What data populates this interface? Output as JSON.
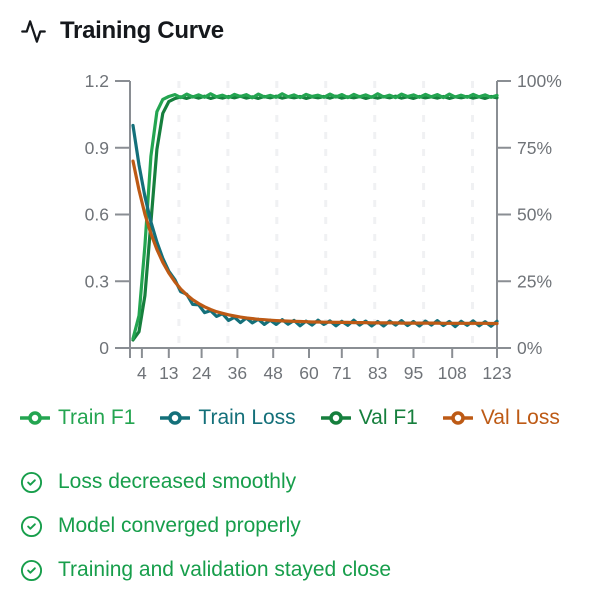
{
  "header": {
    "title": "Training Curve"
  },
  "chart_data": {
    "type": "line",
    "title": "Training Curve",
    "xlabel": "",
    "ylabel_left": "",
    "ylabel_right": "",
    "grid": "vertical-dashed",
    "legend_position": "bottom",
    "left_axis": {
      "min": 0,
      "max": 1.2,
      "tick_values": [
        0,
        0.3,
        0.6,
        0.9,
        1.2
      ],
      "tick_labels": [
        "0",
        "0.3",
        "0.6",
        "0.9",
        "1.2"
      ]
    },
    "right_axis": {
      "min": 0,
      "max": 100,
      "tick_values": [
        0,
        25,
        50,
        75,
        100
      ],
      "tick_labels": [
        "0%",
        "25%",
        "50%",
        "75%",
        "100%"
      ]
    },
    "x_axis": {
      "min": 0,
      "max": 123,
      "tick_values": [
        4,
        13,
        24,
        36,
        48,
        60,
        71,
        83,
        95,
        108,
        123
      ]
    },
    "x": [
      1,
      3,
      5,
      7,
      9,
      11,
      13,
      15,
      17,
      19,
      21,
      23,
      25,
      27,
      29,
      31,
      33,
      35,
      37,
      39,
      41,
      43,
      45,
      47,
      49,
      51,
      53,
      55,
      57,
      59,
      61,
      63,
      65,
      67,
      69,
      71,
      73,
      75,
      77,
      79,
      81,
      83,
      85,
      87,
      89,
      91,
      93,
      95,
      97,
      99,
      101,
      103,
      105,
      107,
      109,
      111,
      113,
      115,
      117,
      119,
      121,
      123
    ],
    "series": [
      {
        "name": "Train F1",
        "axis": "right",
        "color": "#24a551",
        "values": [
          3.5,
          12.1,
          38.3,
          71.8,
          88.5,
          93.1,
          94.2,
          94.9,
          93.8,
          95.1,
          94.0,
          94.8,
          93.9,
          95.2,
          94.1,
          94.7,
          93.8,
          95.0,
          94.2,
          94.9,
          93.7,
          95.1,
          94.0,
          94.6,
          93.9,
          95.2,
          94.1,
          94.8,
          93.8,
          95.0,
          94.2,
          94.7,
          93.9,
          95.1,
          94.0,
          94.9,
          93.8,
          95.0,
          94.1,
          94.8,
          93.9,
          95.2,
          94.0,
          94.7,
          93.8,
          95.1,
          94.2,
          94.8,
          93.9,
          95.0,
          94.1,
          94.9,
          93.8,
          95.1,
          94.0,
          94.7,
          93.9,
          95.0,
          94.1,
          94.8,
          93.9,
          94.6
        ]
      },
      {
        "name": "Train Loss",
        "axis": "left",
        "color": "#14707a",
        "values": [
          1.0,
          0.823,
          0.681,
          0.567,
          0.476,
          0.403,
          0.345,
          0.308,
          0.253,
          0.242,
          0.196,
          0.194,
          0.159,
          0.168,
          0.142,
          0.154,
          0.124,
          0.138,
          0.114,
          0.135,
          0.113,
          0.129,
          0.106,
          0.125,
          0.106,
          0.127,
          0.107,
          0.124,
          0.1,
          0.121,
          0.103,
          0.125,
          0.106,
          0.122,
          0.1,
          0.12,
          0.102,
          0.125,
          0.103,
          0.121,
          0.099,
          0.119,
          0.099,
          0.121,
          0.103,
          0.123,
          0.101,
          0.119,
          0.099,
          0.121,
          0.103,
          0.123,
          0.101,
          0.119,
          0.096,
          0.12,
          0.102,
          0.122,
          0.1,
          0.118,
          0.098,
          0.12
        ]
      },
      {
        "name": "Val F1",
        "axis": "right",
        "color": "#167f3d",
        "values": [
          3.0,
          6.1,
          19.6,
          47.0,
          74.4,
          87.9,
          92.3,
          93.4,
          94.1,
          93.5,
          94.2,
          93.6,
          94.3,
          93.5,
          94.1,
          93.6,
          94.2,
          93.7,
          94.3,
          93.6,
          94.1,
          93.5,
          94.2,
          93.7,
          94.3,
          93.6,
          94.1,
          93.7,
          94.2,
          93.5,
          94.1,
          93.7,
          94.2,
          93.6,
          94.3,
          93.6,
          94.1,
          93.7,
          94.2,
          93.5,
          94.1,
          93.6,
          94.2,
          93.7,
          94.3,
          93.6,
          94.1,
          93.5,
          94.2,
          93.7,
          94.1,
          93.6,
          94.2,
          93.5,
          94.1,
          93.7,
          94.2,
          93.6,
          94.1,
          93.5,
          94.2,
          93.7
        ]
      },
      {
        "name": "Val Loss",
        "axis": "left",
        "color": "#bd5a15",
        "values": [
          0.84,
          0.71,
          0.602,
          0.514,
          0.443,
          0.385,
          0.337,
          0.298,
          0.265,
          0.239,
          0.217,
          0.2,
          0.185,
          0.173,
          0.163,
          0.156,
          0.149,
          0.144,
          0.139,
          0.135,
          0.132,
          0.129,
          0.127,
          0.125,
          0.123,
          0.122,
          0.121,
          0.12,
          0.119,
          0.118,
          0.117,
          0.117,
          0.116,
          0.116,
          0.115,
          0.115,
          0.115,
          0.114,
          0.114,
          0.114,
          0.113,
          0.113,
          0.113,
          0.113,
          0.113,
          0.112,
          0.112,
          0.112,
          0.112,
          0.112,
          0.112,
          0.112,
          0.111,
          0.111,
          0.111,
          0.111,
          0.111,
          0.111,
          0.111,
          0.111,
          0.11,
          0.11
        ]
      }
    ]
  },
  "colors": {
    "axis_line": "#8a8e93",
    "axis_text": "#6f7378",
    "gridline": "#f0f1f3",
    "check_green": "#179e4b",
    "title_text": "#15181c"
  },
  "checks": {
    "items": [
      {
        "label": "Loss decreased smoothly"
      },
      {
        "label": "Model converged properly"
      },
      {
        "label": "Training and validation stayed close"
      }
    ]
  }
}
